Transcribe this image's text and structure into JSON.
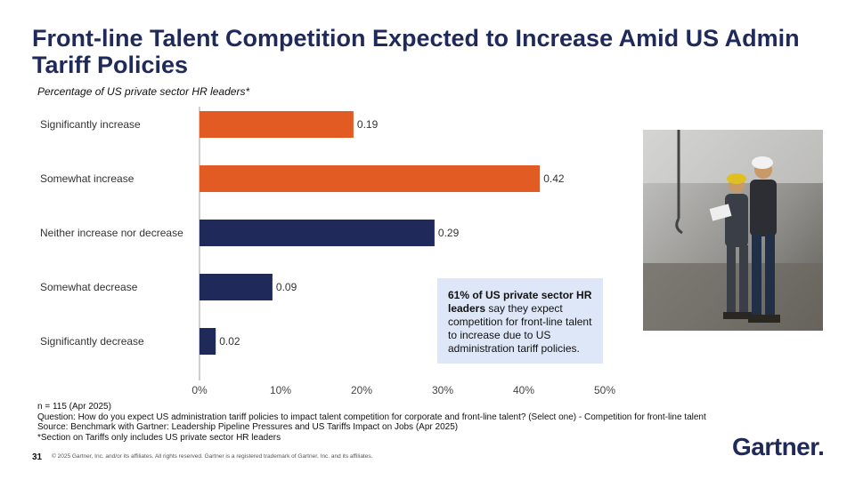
{
  "title": "Front-line Talent Competition Expected to Increase Amid US Admin Tariff Policies",
  "subtitle": "Percentage of US private sector HR leaders*",
  "colors": {
    "increase": "#e15b22",
    "other": "#1f2a5a",
    "callout_bg": "#dde7f7",
    "brand": "#1f2a5a"
  },
  "chart_data": {
    "type": "bar",
    "orientation": "horizontal",
    "categories": [
      "Significantly increase",
      "Somewhat increase",
      "Neither increase nor decrease",
      "Somewhat decrease",
      "Significantly decrease"
    ],
    "values": [
      0.19,
      0.42,
      0.29,
      0.09,
      0.02
    ],
    "value_labels": [
      "0.19",
      "0.42",
      "0.29",
      "0.09",
      "0.02"
    ],
    "bar_colors": [
      "#e15b22",
      "#e15b22",
      "#1f2a5a",
      "#1f2a5a",
      "#1f2a5a"
    ],
    "xlim": [
      0,
      0.5
    ],
    "x_ticks": [
      0,
      0.1,
      0.2,
      0.3,
      0.4,
      0.5
    ],
    "x_tick_labels": [
      "0%",
      "10%",
      "20%",
      "30%",
      "40%",
      "50%"
    ],
    "xlabel": "",
    "ylabel": "",
    "grid": false
  },
  "callout": {
    "bold": "61% of US private sector HR leaders",
    "rest": " say they expect competition for front-line talent to increase due to US administration tariff policies."
  },
  "notes": [
    "n = 115 (Apr 2025)",
    "Question: How do you expect US administration tariff policies to impact talent competition for corporate and front-line talent? (Select one) - Competition for front-line talent",
    "Source: Benchmark with Gartner: Leadership Pipeline Pressures and US Tariffs Impact on Jobs (Apr 2025)",
    "*Section on Tariffs only includes US private sector HR leaders"
  ],
  "footer": {
    "page_number": "31",
    "copyright": "© 2025 Gartner, Inc. and/or its affiliates. All rights reserved. Gartner is a registered trademark of Gartner, Inc. and its affiliates.",
    "logo_text": "Gartner",
    "logo_dot": "."
  },
  "photo": {
    "icon": "workers-photo-icon"
  }
}
